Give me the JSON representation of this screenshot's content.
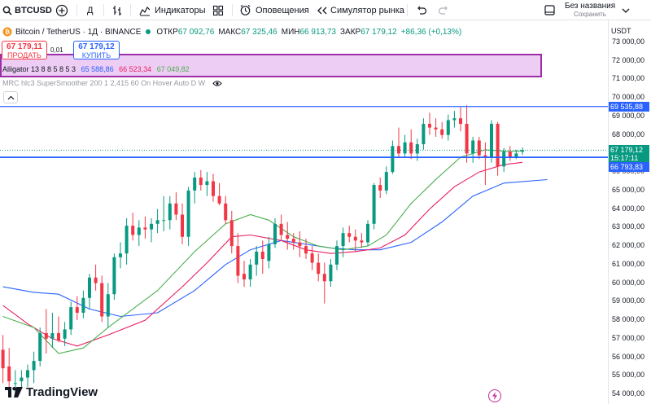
{
  "toolbar": {
    "symbol": "BTCUSD",
    "interval": "Д",
    "indicators": "Индикаторы",
    "alerts": "Оповещения",
    "replay": "Симулятор рынка",
    "layout_name": "Без названия",
    "save_label": "Сохранить"
  },
  "legend": {
    "title": "Bitcoin / TetherUS · 1Д · BINANCE",
    "open_key": "ОТКР",
    "open": "67 092,76",
    "high_key": "МАКС",
    "high": "67 325,46",
    "low_key": "МИН",
    "low": "66 913,73",
    "close_key": "ЗАКР",
    "close": "67 179,12",
    "change": "+86,36 (+0,13%)"
  },
  "trade": {
    "sell_price": "67 179,11",
    "sell_label": "ПРОДАТЬ",
    "spread": "0,01",
    "buy_price": "67 179,12",
    "buy_label": "КУПИТЬ"
  },
  "alligator": {
    "label": "Alligator 13 8 8 5 8 5 3",
    "jaw": "65 588,86",
    "teeth": "66 523,34",
    "lips": "67 049,82",
    "colors": {
      "jaw": "#2962ff",
      "teeth": "#e91e63",
      "lips": "#4caf50"
    }
  },
  "mrc_label": "MRC hlc3 SuperSmoother 200 1 2,415 60 On Hover Auto D W",
  "axis": {
    "currency": "USDT",
    "ticks": [
      "73 000,00",
      "72 000,00",
      "71 000,00",
      "70 000,00",
      "69 000,00",
      "68 000,00",
      "67 000,00",
      "66 000,00",
      "65 000,00",
      "64 000,00",
      "63 000,00",
      "62 000,00",
      "61 000,00",
      "60 000,00",
      "59 000,00",
      "58 000,00",
      "57 000,00",
      "56 000,00",
      "55 000,00",
      "54 000,00"
    ],
    "resistance_label": "69 535,88",
    "current_price": "67 179,12",
    "countdown": "15:17:11",
    "support_label": "66 793,83"
  },
  "levels": {
    "resistance": 69535.88,
    "support": 66793.83,
    "current": 67179.12
  },
  "colors": {
    "up": "#089981",
    "down": "#f23645",
    "level": "#2962ff"
  },
  "logo": "TradingView",
  "chart_data": {
    "type": "candlestick",
    "y_range": [
      54000,
      73000
    ],
    "candles": [
      {
        "o": 57500,
        "h": 58300,
        "l": 56000,
        "c": 56400
      },
      {
        "o": 56400,
        "h": 57200,
        "l": 54600,
        "c": 55400
      },
      {
        "o": 55500,
        "h": 56500,
        "l": 54000,
        "c": 54700
      },
      {
        "o": 54600,
        "h": 55300,
        "l": 53900,
        "c": 54600
      },
      {
        "o": 54700,
        "h": 55300,
        "l": 54300,
        "c": 54900
      },
      {
        "o": 54900,
        "h": 55600,
        "l": 54400,
        "c": 55300
      },
      {
        "o": 55300,
        "h": 56300,
        "l": 54600,
        "c": 55800
      },
      {
        "o": 55800,
        "h": 57600,
        "l": 55500,
        "c": 57300
      },
      {
        "o": 57300,
        "h": 58600,
        "l": 56200,
        "c": 57000
      },
      {
        "o": 57000,
        "h": 58400,
        "l": 56500,
        "c": 57300
      },
      {
        "o": 57300,
        "h": 58200,
        "l": 56800,
        "c": 56900
      },
      {
        "o": 57000,
        "h": 57900,
        "l": 56600,
        "c": 57500
      },
      {
        "o": 57500,
        "h": 59000,
        "l": 57200,
        "c": 58700
      },
      {
        "o": 58700,
        "h": 59300,
        "l": 58000,
        "c": 58400
      },
      {
        "o": 58400,
        "h": 59600,
        "l": 58100,
        "c": 59200
      },
      {
        "o": 59200,
        "h": 60500,
        "l": 58600,
        "c": 60300
      },
      {
        "o": 60300,
        "h": 61000,
        "l": 59600,
        "c": 60000
      },
      {
        "o": 60000,
        "h": 60400,
        "l": 57900,
        "c": 58200
      },
      {
        "o": 58200,
        "h": 60000,
        "l": 57600,
        "c": 59400
      },
      {
        "o": 59400,
        "h": 61600,
        "l": 59100,
        "c": 61400
      },
      {
        "o": 61400,
        "h": 62200,
        "l": 60800,
        "c": 61600
      },
      {
        "o": 61600,
        "h": 63500,
        "l": 61000,
        "c": 63100
      },
      {
        "o": 63100,
        "h": 63800,
        "l": 62300,
        "c": 62600
      },
      {
        "o": 62600,
        "h": 63400,
        "l": 62000,
        "c": 63000
      },
      {
        "o": 63000,
        "h": 63600,
        "l": 62400,
        "c": 62900
      },
      {
        "o": 62900,
        "h": 63500,
        "l": 62200,
        "c": 63200
      },
      {
        "o": 63200,
        "h": 64000,
        "l": 62700,
        "c": 63400
      },
      {
        "o": 63400,
        "h": 64700,
        "l": 62800,
        "c": 63400
      },
      {
        "o": 63400,
        "h": 64700,
        "l": 62900,
        "c": 64300
      },
      {
        "o": 64300,
        "h": 64900,
        "l": 63400,
        "c": 63700
      },
      {
        "o": 63700,
        "h": 64300,
        "l": 62100,
        "c": 62500
      },
      {
        "o": 62500,
        "h": 65200,
        "l": 62000,
        "c": 65000
      },
      {
        "o": 65000,
        "h": 66000,
        "l": 64300,
        "c": 65700
      },
      {
        "o": 65700,
        "h": 66100,
        "l": 65000,
        "c": 65300
      },
      {
        "o": 65300,
        "h": 66000,
        "l": 64700,
        "c": 65500
      },
      {
        "o": 65500,
        "h": 65900,
        "l": 64400,
        "c": 64700
      },
      {
        "o": 64700,
        "h": 65400,
        "l": 64200,
        "c": 64300
      },
      {
        "o": 64300,
        "h": 64700,
        "l": 63200,
        "c": 63400
      },
      {
        "o": 63400,
        "h": 63900,
        "l": 61600,
        "c": 62000
      },
      {
        "o": 62000,
        "h": 62700,
        "l": 60000,
        "c": 60400
      },
      {
        "o": 60500,
        "h": 61200,
        "l": 59800,
        "c": 60200
      },
      {
        "o": 60200,
        "h": 61300,
        "l": 59800,
        "c": 61000
      },
      {
        "o": 61000,
        "h": 62000,
        "l": 60400,
        "c": 61700
      },
      {
        "o": 61700,
        "h": 62300,
        "l": 60500,
        "c": 61300
      },
      {
        "o": 61200,
        "h": 62500,
        "l": 60800,
        "c": 62100
      },
      {
        "o": 62100,
        "h": 63500,
        "l": 61900,
        "c": 63200
      },
      {
        "o": 63200,
        "h": 63700,
        "l": 62300,
        "c": 62600
      },
      {
        "o": 62600,
        "h": 63300,
        "l": 61800,
        "c": 62400
      },
      {
        "o": 62400,
        "h": 62700,
        "l": 61800,
        "c": 62200
      },
      {
        "o": 62200,
        "h": 62800,
        "l": 61400,
        "c": 62000
      },
      {
        "o": 62000,
        "h": 62400,
        "l": 61300,
        "c": 61600
      },
      {
        "o": 61600,
        "h": 62000,
        "l": 60700,
        "c": 61100
      },
      {
        "o": 61100,
        "h": 61600,
        "l": 60100,
        "c": 60500
      },
      {
        "o": 60500,
        "h": 61100,
        "l": 58900,
        "c": 60100
      },
      {
        "o": 60100,
        "h": 61300,
        "l": 59800,
        "c": 61000
      },
      {
        "o": 61000,
        "h": 62300,
        "l": 60700,
        "c": 62000
      },
      {
        "o": 62000,
        "h": 63000,
        "l": 61400,
        "c": 62700
      },
      {
        "o": 62700,
        "h": 63100,
        "l": 62200,
        "c": 62500
      },
      {
        "o": 62500,
        "h": 62900,
        "l": 61700,
        "c": 62300
      },
      {
        "o": 62300,
        "h": 62700,
        "l": 61900,
        "c": 62200
      },
      {
        "o": 62200,
        "h": 63400,
        "l": 62000,
        "c": 63200
      },
      {
        "o": 63200,
        "h": 65400,
        "l": 62900,
        "c": 65300
      },
      {
        "o": 65300,
        "h": 65700,
        "l": 64600,
        "c": 65000
      },
      {
        "o": 65000,
        "h": 66300,
        "l": 64800,
        "c": 66000
      },
      {
        "o": 66000,
        "h": 67700,
        "l": 65900,
        "c": 67400
      },
      {
        "o": 67400,
        "h": 68400,
        "l": 66800,
        "c": 67000
      },
      {
        "o": 67000,
        "h": 68000,
        "l": 66800,
        "c": 67600
      },
      {
        "o": 67600,
        "h": 68300,
        "l": 66700,
        "c": 67000
      },
      {
        "o": 67000,
        "h": 67800,
        "l": 66600,
        "c": 67500
      },
      {
        "o": 67500,
        "h": 68900,
        "l": 67200,
        "c": 68600
      },
      {
        "o": 68600,
        "h": 69200,
        "l": 68000,
        "c": 68400
      },
      {
        "o": 68400,
        "h": 68900,
        "l": 67900,
        "c": 68300
      },
      {
        "o": 68300,
        "h": 68700,
        "l": 67800,
        "c": 68000
      },
      {
        "o": 68000,
        "h": 69100,
        "l": 67700,
        "c": 68800
      },
      {
        "o": 68800,
        "h": 69300,
        "l": 68400,
        "c": 68900
      },
      {
        "o": 68900,
        "h": 69500,
        "l": 68200,
        "c": 68600
      },
      {
        "o": 68600,
        "h": 69600,
        "l": 66500,
        "c": 67000
      },
      {
        "o": 67000,
        "h": 67900,
        "l": 66500,
        "c": 67700
      },
      {
        "o": 67700,
        "h": 67900,
        "l": 66700,
        "c": 66900
      },
      {
        "o": 66900,
        "h": 67600,
        "l": 65300,
        "c": 66800
      },
      {
        "o": 66800,
        "h": 68800,
        "l": 66500,
        "c": 68600
      },
      {
        "o": 68600,
        "h": 68700,
        "l": 65800,
        "c": 66300
      },
      {
        "o": 66300,
        "h": 67300,
        "l": 66000,
        "c": 67100
      },
      {
        "o": 67100,
        "h": 67400,
        "l": 66600,
        "c": 66800
      },
      {
        "o": 66800,
        "h": 67200,
        "l": 66700,
        "c": 67000
      },
      {
        "o": 67092.76,
        "h": 67325.46,
        "l": 66913.73,
        "c": 67179.12
      }
    ],
    "lips": [
      [
        1,
        58200
      ],
      [
        6,
        57600
      ],
      [
        10,
        56200
      ],
      [
        14,
        56500
      ],
      [
        18,
        57600
      ],
      [
        22,
        58600
      ],
      [
        26,
        59600
      ],
      [
        32,
        61700
      ],
      [
        37,
        63200
      ],
      [
        41,
        63700
      ],
      [
        44,
        63400
      ],
      [
        48,
        62500
      ],
      [
        52,
        62000
      ],
      [
        56,
        61800
      ],
      [
        60,
        62000
      ],
      [
        63,
        62600
      ],
      [
        67,
        64300
      ],
      [
        71,
        65600
      ],
      [
        75,
        66800
      ],
      [
        79,
        67200
      ],
      [
        83,
        67100
      ],
      [
        85,
        67130
      ]
    ],
    "teeth": [
      [
        1,
        58800
      ],
      [
        5,
        57800
      ],
      [
        9,
        57000
      ],
      [
        13,
        56600
      ],
      [
        18,
        57200
      ],
      [
        24,
        58000
      ],
      [
        30,
        59800
      ],
      [
        34,
        61100
      ],
      [
        38,
        62500
      ],
      [
        41,
        62600
      ],
      [
        46,
        62300
      ],
      [
        50,
        61800
      ],
      [
        54,
        61600
      ],
      [
        58,
        61700
      ],
      [
        62,
        61900
      ],
      [
        66,
        62600
      ],
      [
        70,
        64000
      ],
      [
        74,
        65200
      ],
      [
        78,
        66000
      ],
      [
        82,
        66400
      ],
      [
        85,
        66520
      ]
    ],
    "jaw": [
      [
        1,
        59800
      ],
      [
        6,
        59500
      ],
      [
        10,
        59400
      ],
      [
        15,
        58600
      ],
      [
        20,
        58200
      ],
      [
        26,
        58400
      ],
      [
        32,
        59600
      ],
      [
        37,
        61000
      ],
      [
        41,
        61800
      ],
      [
        46,
        62300
      ],
      [
        50,
        62100
      ],
      [
        54,
        61900
      ],
      [
        58,
        61800
      ],
      [
        62,
        61800
      ],
      [
        67,
        62200
      ],
      [
        72,
        63300
      ],
      [
        77,
        64700
      ],
      [
        82,
        65400
      ],
      [
        89,
        65590
      ]
    ]
  }
}
